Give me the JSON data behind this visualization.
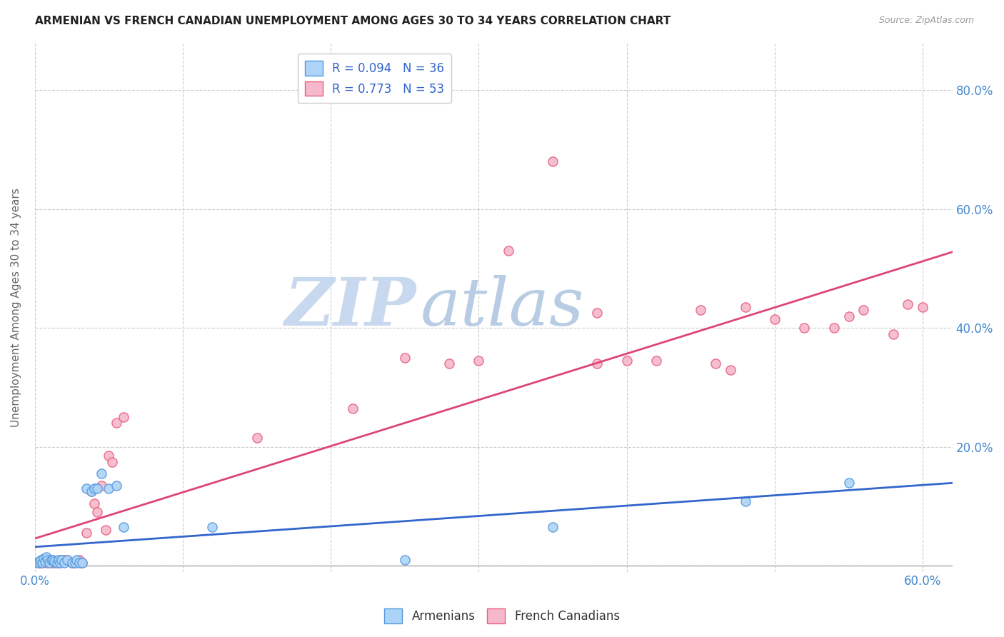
{
  "title": "ARMENIAN VS FRENCH CANADIAN UNEMPLOYMENT AMONG AGES 30 TO 34 YEARS CORRELATION CHART",
  "source": "Source: ZipAtlas.com",
  "ylabel": "Unemployment Among Ages 30 to 34 years",
  "xlim": [
    0.0,
    0.62
  ],
  "ylim": [
    -0.01,
    0.88
  ],
  "x_ticks": [
    0.0,
    0.1,
    0.2,
    0.3,
    0.4,
    0.5,
    0.6
  ],
  "y_ticks": [
    0.0,
    0.2,
    0.4,
    0.6,
    0.8
  ],
  "y_tick_labels_right": [
    "",
    "20.0%",
    "40.0%",
    "60.0%",
    "80.0%"
  ],
  "armenian_color": "#add4f7",
  "french_color": "#f5b8cc",
  "armenian_edge_color": "#5599dd",
  "french_edge_color": "#e8607a",
  "armenian_line_color": "#3366cc",
  "french_line_color": "#dd4477",
  "armenian_R": 0.094,
  "armenian_N": 36,
  "french_R": 0.773,
  "french_N": 53,
  "background_color": "#ffffff",
  "grid_color": "#cccccc",
  "watermark_zip": "ZIP",
  "watermark_atlas": "atlas",
  "armenian_x": [
    0.002,
    0.003,
    0.004,
    0.005,
    0.006,
    0.007,
    0.008,
    0.009,
    0.01,
    0.011,
    0.012,
    0.013,
    0.015,
    0.016,
    0.017,
    0.018,
    0.02,
    0.022,
    0.025,
    0.027,
    0.028,
    0.03,
    0.032,
    0.035,
    0.038,
    0.04,
    0.042,
    0.045,
    0.05,
    0.055,
    0.06,
    0.12,
    0.25,
    0.35,
    0.48,
    0.55
  ],
  "armenian_y": [
    0.005,
    0.008,
    0.01,
    0.005,
    0.012,
    0.008,
    0.015,
    0.01,
    0.005,
    0.01,
    0.01,
    0.008,
    0.005,
    0.01,
    0.005,
    0.01,
    0.005,
    0.01,
    0.005,
    0.005,
    0.01,
    0.005,
    0.005,
    0.13,
    0.125,
    0.13,
    0.13,
    0.155,
    0.13,
    0.135,
    0.065,
    0.065,
    0.01,
    0.065,
    0.108,
    0.14
  ],
  "french_x": [
    0.002,
    0.003,
    0.005,
    0.006,
    0.007,
    0.008,
    0.009,
    0.01,
    0.012,
    0.013,
    0.015,
    0.016,
    0.018,
    0.02,
    0.022,
    0.025,
    0.027,
    0.028,
    0.03,
    0.032,
    0.035,
    0.038,
    0.04,
    0.042,
    0.045,
    0.048,
    0.05,
    0.052,
    0.055,
    0.06,
    0.15,
    0.215,
    0.25,
    0.28,
    0.3,
    0.32,
    0.35,
    0.38,
    0.4,
    0.42,
    0.45,
    0.46,
    0.47,
    0.48,
    0.5,
    0.52,
    0.54,
    0.55,
    0.56,
    0.58,
    0.59,
    0.6,
    0.38
  ],
  "french_y": [
    0.005,
    0.005,
    0.005,
    0.008,
    0.008,
    0.005,
    0.01,
    0.01,
    0.005,
    0.005,
    0.008,
    0.005,
    0.01,
    0.01,
    0.01,
    0.005,
    0.005,
    0.008,
    0.01,
    0.005,
    0.055,
    0.125,
    0.105,
    0.09,
    0.135,
    0.06,
    0.185,
    0.175,
    0.24,
    0.25,
    0.215,
    0.265,
    0.35,
    0.34,
    0.345,
    0.53,
    0.68,
    0.34,
    0.345,
    0.345,
    0.43,
    0.34,
    0.33,
    0.435,
    0.415,
    0.4,
    0.4,
    0.42,
    0.43,
    0.39,
    0.44,
    0.435,
    0.425
  ]
}
